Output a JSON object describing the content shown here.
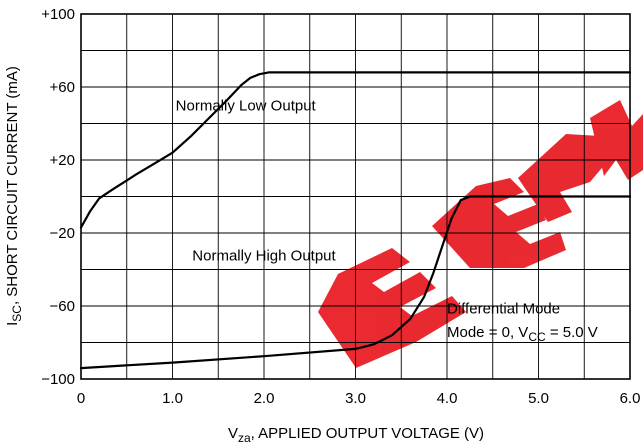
{
  "chart_data": {
    "type": "line",
    "title": "",
    "xlabel": "",
    "ylabel": "",
    "xlabel_parts": {
      "main": "V",
      "sub": "za",
      "rest": ", APPLIED OUTPUT VOLTAGE (V)"
    },
    "ylabel_parts": {
      "main": "I",
      "sub": "SC",
      "rest": ",  SHORT CIRCUIT CURRENT (mA)"
    },
    "xlim": [
      0,
      6.0
    ],
    "ylim": [
      -100,
      100
    ],
    "grid": true,
    "x_ticks": [
      {
        "value": 0,
        "label": "0"
      },
      {
        "value": 1.0,
        "label": "1.0"
      },
      {
        "value": 2.0,
        "label": "2.0"
      },
      {
        "value": 3.0,
        "label": "3.0"
      },
      {
        "value": 4.0,
        "label": "4.0"
      },
      {
        "value": 5.0,
        "label": "5.0"
      },
      {
        "value": 6.0,
        "label": "6.0"
      }
    ],
    "y_ticks": [
      {
        "value": 100,
        "label": "+100"
      },
      {
        "value": 60,
        "label": "+60"
      },
      {
        "value": 20,
        "label": "+20"
      },
      {
        "value": -20,
        "label": "−20"
      },
      {
        "value": -60,
        "label": "−60"
      },
      {
        "value": -100,
        "label": "−100"
      }
    ],
    "series": [
      {
        "name": "Normally Low Output",
        "color": "#000000",
        "x": [
          0.0,
          0.1,
          0.2,
          0.35,
          0.6,
          0.8,
          1.0,
          1.2,
          1.4,
          1.6,
          1.75,
          1.85,
          1.95,
          2.05,
          2.5,
          3.0,
          4.0,
          5.0,
          6.0
        ],
        "y": [
          -17,
          -8,
          -1,
          4,
          12,
          18,
          24,
          33,
          43,
          53,
          61,
          65,
          67,
          68,
          68,
          68,
          68,
          68,
          68
        ]
      },
      {
        "name": "Normally High Output",
        "color": "#000000",
        "x": [
          0.0,
          1.0,
          2.0,
          3.0,
          3.2,
          3.4,
          3.6,
          3.75,
          3.85,
          3.95,
          4.05,
          4.15,
          4.25,
          4.35,
          5.0,
          6.0
        ],
        "y": [
          -94,
          -91,
          -87.5,
          -83.5,
          -81,
          -76,
          -67,
          -55,
          -42,
          -27,
          -12,
          -2,
          0,
          0,
          0,
          0
        ]
      }
    ],
    "annotations": [
      {
        "text": "Normally Low Output",
        "x": 1.8,
        "y": 47
      },
      {
        "text": "Normally High Output",
        "x": 2.0,
        "y": -35
      },
      {
        "text": "Differential Mode",
        "x": 4.0,
        "y": -64
      },
      {
        "text_main": "Mode = 0, V",
        "sub": "CC",
        "rest": " = 5.0 V",
        "x": 4.0,
        "y": -77
      }
    ],
    "watermark": "EEPW",
    "watermark_color": "#e8171f"
  }
}
